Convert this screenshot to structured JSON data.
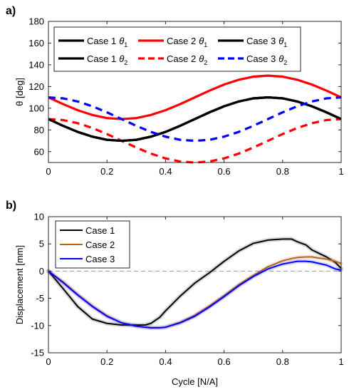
{
  "chart_data": [
    {
      "type": "line",
      "panel_label": "a)",
      "title": "",
      "xlabel": "",
      "ylabel": "θ [deg]",
      "xlim": [
        0,
        1
      ],
      "ylim": [
        50,
        180
      ],
      "xticks": [
        0,
        0.2,
        0.4,
        0.6,
        0.8,
        1
      ],
      "xtick_labels": [
        "0",
        "0.2",
        "0.4",
        "0.6",
        "0.8",
        "1"
      ],
      "yticks": [
        60,
        80,
        100,
        120,
        140,
        160,
        180
      ],
      "ytick_labels": [
        "60",
        "80",
        "100",
        "120",
        "140",
        "160",
        "180"
      ],
      "grid": false,
      "legend_position": "top",
      "x": [
        0,
        0.05,
        0.1,
        0.15,
        0.2,
        0.25,
        0.3,
        0.35,
        0.4,
        0.45,
        0.5,
        0.55,
        0.6,
        0.65,
        0.7,
        0.75,
        0.8,
        0.85,
        0.9,
        0.95,
        1
      ],
      "series": [
        {
          "name": "Case 1",
          "subscript": "1",
          "color": "#000000",
          "dash": "solid",
          "values": [
            90,
            83.8,
            78.2,
            73.8,
            70.9,
            70,
            70.9,
            73.8,
            78.2,
            83.8,
            90,
            96.2,
            101.8,
            106.2,
            109.1,
            110,
            109.1,
            106.2,
            101.8,
            96.2,
            90
          ]
        },
        {
          "name": "Case 1",
          "subscript": "2",
          "color": "#000000",
          "dash": "solid",
          "values": [
            90,
            83.8,
            78.2,
            73.8,
            70.9,
            70,
            70.9,
            73.8,
            78.2,
            83.8,
            90,
            96.2,
            101.8,
            106.2,
            109.1,
            110,
            109.1,
            106.2,
            101.8,
            96.2,
            90
          ]
        },
        {
          "name": "Case 2",
          "subscript": "1",
          "color": "#ff0000",
          "dash": "solid",
          "values": [
            110,
            103.8,
            98.2,
            93.8,
            90.9,
            90,
            90.9,
            93.8,
            98.2,
            103.8,
            110,
            116.2,
            121.8,
            126.2,
            129.1,
            130,
            129.1,
            126.2,
            121.8,
            116.2,
            110
          ]
        },
        {
          "name": "Case 2",
          "subscript": "2",
          "color": "#ff0000",
          "dash": "dashed",
          "values": [
            90,
            89.1,
            86.2,
            81.8,
            76.2,
            70,
            63.8,
            58.2,
            53.8,
            50.9,
            50,
            50.9,
            53.8,
            58.2,
            63.8,
            70,
            76.2,
            81.8,
            86.2,
            89.1,
            90
          ]
        },
        {
          "name": "Case 3",
          "subscript": "1",
          "color": "#000000",
          "dash": "solid",
          "values": [
            90,
            83.8,
            78.2,
            73.8,
            70.9,
            70,
            70.9,
            73.8,
            78.2,
            83.8,
            90,
            96.2,
            101.8,
            106.2,
            109.1,
            110,
            109.1,
            106.2,
            101.8,
            96.2,
            90
          ]
        },
        {
          "name": "Case 3",
          "subscript": "2",
          "color": "#0000ff",
          "dash": "dashed",
          "values": [
            110,
            109.1,
            106.2,
            101.8,
            96.2,
            90,
            83.8,
            78.2,
            73.8,
            70.9,
            70,
            70.9,
            73.8,
            78.2,
            83.8,
            90,
            96.2,
            101.8,
            106.2,
            109.1,
            110
          ]
        }
      ]
    },
    {
      "type": "line",
      "panel_label": "b)",
      "title": "",
      "xlabel": "Cycle [N/A]",
      "ylabel": "Displacement [mm]",
      "xlim": [
        0,
        1
      ],
      "ylim": [
        -15,
        10
      ],
      "xticks": [
        0,
        0.2,
        0.4,
        0.6,
        0.8,
        1
      ],
      "xtick_labels": [
        "0",
        "0.2",
        "0.4",
        "0.6",
        "0.8",
        "1"
      ],
      "yticks": [
        -15,
        -10,
        -5,
        0,
        5,
        10
      ],
      "ytick_labels": [
        "-15",
        "-10",
        "-5",
        "0",
        "5",
        "10"
      ],
      "grid": false,
      "legend_position": "top-left",
      "reference_line": {
        "y": 0,
        "color": "#999999",
        "dash": "dashed"
      },
      "x": [
        0,
        0.05,
        0.1,
        0.15,
        0.2,
        0.25,
        0.3,
        0.33,
        0.35,
        0.38,
        0.4,
        0.45,
        0.5,
        0.55,
        0.6,
        0.65,
        0.7,
        0.75,
        0.8,
        0.83,
        0.85,
        0.88,
        0.9,
        0.95,
        0.98,
        1
      ],
      "series": [
        {
          "name": "Case 1",
          "color": "#000000",
          "dash": "solid",
          "values": [
            0,
            -3.2,
            -6.5,
            -8.8,
            -9.6,
            -9.9,
            -9.9,
            -9.9,
            -9.6,
            -8.5,
            -7.3,
            -4.6,
            -2.2,
            -0.3,
            1.8,
            3.7,
            5.1,
            5.7,
            5.9,
            5.9,
            5.4,
            4.8,
            3.9,
            2.6,
            1.6,
            0.5
          ]
        },
        {
          "name": "Case 2",
          "color": "#b5651d",
          "dash": "solid",
          "values": [
            0,
            -2.0,
            -4.3,
            -6.4,
            -8.2,
            -9.5,
            -10.1,
            -10.3,
            -10.4,
            -10.4,
            -10.3,
            -9.4,
            -8.1,
            -6.4,
            -4.5,
            -2.5,
            -0.8,
            0.8,
            1.9,
            2.3,
            2.5,
            2.6,
            2.6,
            2.2,
            1.8,
            1.4
          ]
        },
        {
          "name": "Case 3",
          "color": "#0000ff",
          "dash": "solid",
          "values": [
            0,
            -2.1,
            -4.4,
            -6.5,
            -8.3,
            -9.5,
            -10.1,
            -10.3,
            -10.4,
            -10.4,
            -10.3,
            -9.5,
            -8.3,
            -6.6,
            -4.7,
            -2.7,
            -1.0,
            0.4,
            1.3,
            1.6,
            1.8,
            1.8,
            1.7,
            1.1,
            0.4,
            0.2
          ]
        }
      ]
    }
  ]
}
